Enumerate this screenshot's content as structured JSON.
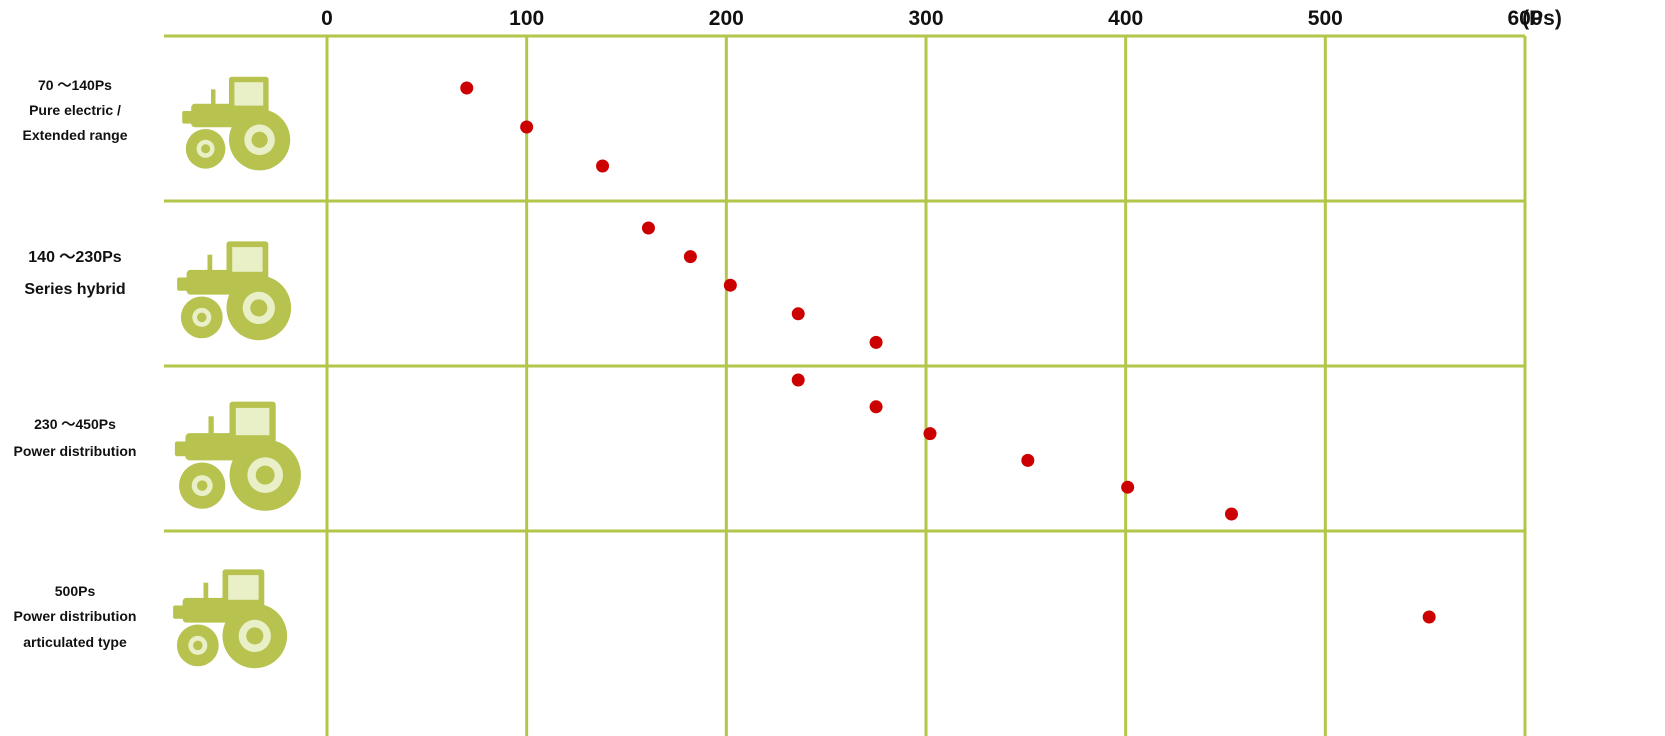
{
  "chart_data": {
    "type": "scatter",
    "title": "",
    "xlabel": "",
    "ylabel": "",
    "x_unit": "(Ps)",
    "xlim": [
      0,
      600
    ],
    "x_ticks": [
      "0",
      "100",
      "200",
      "300",
      "400",
      "500",
      "600"
    ],
    "grid": true,
    "legend": "none",
    "colors": {
      "grid": "#b3c64a",
      "point": "#cc0000",
      "tractor": "#b7c24f"
    },
    "rows": [
      {
        "id": "row1",
        "icon": "small-tractor-icon",
        "label_lines": [
          "70 ～140Ps",
          "Pure electric /",
          "Extended range"
        ],
        "points": [
          70,
          100,
          138
        ]
      },
      {
        "id": "row2",
        "icon": "cab-tractor-icon",
        "label_lines": [
          "140 ～230Ps",
          "Series hybrid"
        ],
        "points": [
          161,
          182,
          202,
          236,
          275
        ]
      },
      {
        "id": "row3",
        "icon": "large-tractor-icon",
        "label_lines": [
          "230 ～450Ps",
          "Power distribution"
        ],
        "points": [
          236,
          275,
          302,
          351,
          401,
          453
        ]
      },
      {
        "id": "row4",
        "icon": "articulated-tractor-icon",
        "label_lines": [
          "500Ps",
          "Power distribution",
          "articulated type"
        ],
        "points": [
          552
        ]
      }
    ]
  }
}
